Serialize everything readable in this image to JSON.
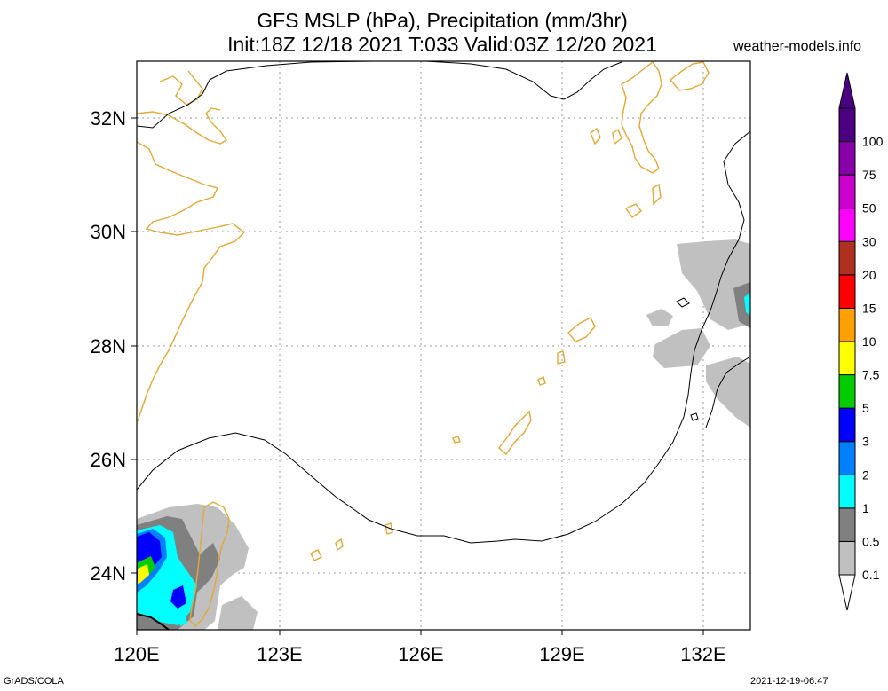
{
  "header": {
    "title_line1": "GFS MSLP (hPa), Precipitation (mm/3hr)",
    "title_line2": "Init:18Z 12/18 2021 T:033 Valid:03Z 12/20 2021",
    "site": "weather-models.info"
  },
  "footer": {
    "left": "GrADS/COLA",
    "right": "2021-12-19-06:47"
  },
  "map": {
    "lon_labels": [
      "120E",
      "123E",
      "126E",
      "129E",
      "132E"
    ],
    "lat_labels": [
      "24N",
      "26N",
      "28N",
      "30N",
      "32N"
    ],
    "coast_color": "#e0a838",
    "isobar_color": "#000000"
  },
  "colorbar": {
    "labels": [
      "0.1",
      "0.5",
      "1",
      "2",
      "3",
      "5",
      "7.5",
      "10",
      "15",
      "20",
      "30",
      "50",
      "75",
      "100"
    ],
    "colors": [
      "#c0c0c0",
      "#808080",
      "#00ffff",
      "#0080ff",
      "#0000ff",
      "#00cc00",
      "#ffff00",
      "#ffa000",
      "#ff0000",
      "#b03020",
      "#ff00ff",
      "#cc00cc",
      "#8800aa",
      "#4b0082"
    ]
  }
}
